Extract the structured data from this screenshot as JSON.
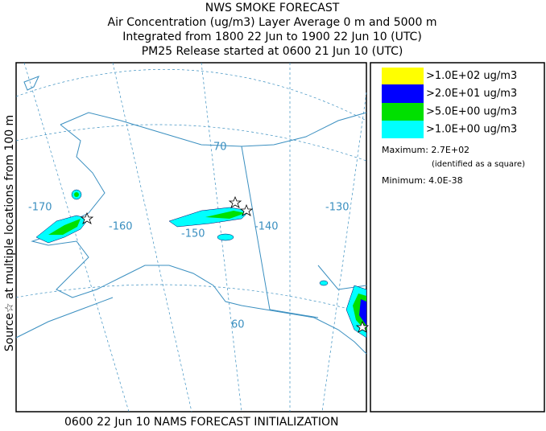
{
  "header": {
    "lines": [
      "NWS SMOKE FORECAST",
      "Air Concentration (ug/m3) Layer Average    0 m and  5000 m",
      "Integrated from 1800 22 Jun to 1900 22 Jun 10 (UTC)",
      "PM25 Release started at 0600 21 Jun 10 (UTC)"
    ]
  },
  "side_label": "Source☆ at multiple locations   from   100 m",
  "legend": {
    "items": [
      {
        "label": ">1.0E+02 ug/m3",
        "color": "#ffff00"
      },
      {
        "label": ">2.0E+01 ug/m3",
        "color": "#0000ff"
      },
      {
        "label": ">5.0E+00 ug/m3",
        "color": "#00e000"
      },
      {
        "label": ">1.0E+00 ug/m3",
        "color": "#00ffff"
      }
    ]
  },
  "stats": {
    "maximum": "Maximum: 2.7E+02",
    "max_note": "(identified as a square)",
    "minimum": "Minimum: 4.0E-38"
  },
  "map": {
    "labels": [
      "-170",
      "-160",
      "-150",
      "-140",
      "-130",
      "70",
      "60"
    ]
  },
  "footer": "0600 22 Jun 10 NAMS FORECAST INITIALIZATION"
}
